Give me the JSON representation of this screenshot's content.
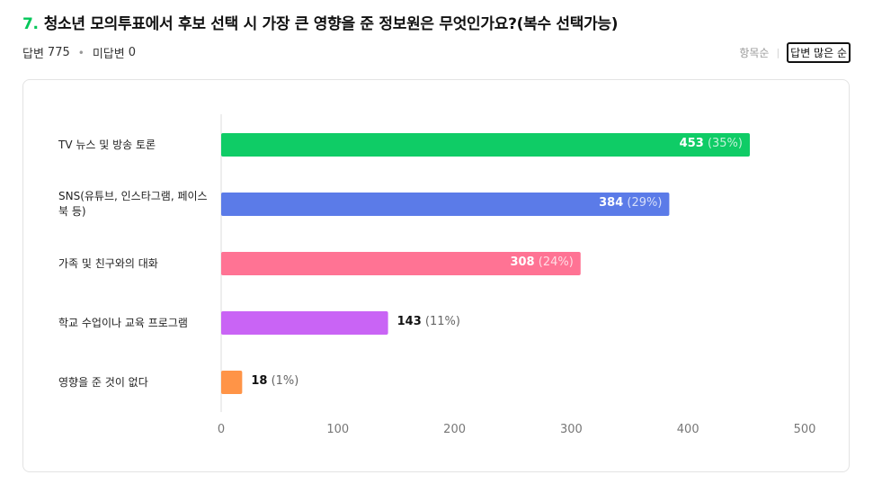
{
  "question": {
    "number": "7.",
    "title": "청소년 모의투표에서 후보 선택 시 가장 큰 영향을 준 정보원은 무엇인가요?(복수 선택가능)"
  },
  "stats": {
    "answered_label": "답변",
    "answered_count": "775",
    "unanswered_label": "미답변",
    "unanswered_count": "0"
  },
  "sort": {
    "by_item": "항목순",
    "by_answers": "답변 많은 순",
    "active": "by_answers"
  },
  "colors": {
    "accent": "#03c75a",
    "series": [
      "#0fcc66",
      "#5b7be8",
      "#ff7394",
      "#c964f5",
      "#ff9447"
    ]
  },
  "chart_data": {
    "type": "bar",
    "orientation": "horizontal",
    "categories": [
      "TV 뉴스 및 방송 토론",
      "SNS(유튜브, 인스타그램, 페이스북 등)",
      "가족 및 친구와의 대화",
      "학교 수업이나 교육 프로그램",
      "영향을 준 것이 없다"
    ],
    "values": [
      453,
      384,
      308,
      143,
      18
    ],
    "value_labels": [
      "453",
      "384",
      "308",
      "143",
      "18"
    ],
    "percent_labels": [
      "(35%)",
      "(29%)",
      "(24%)",
      "(11%)",
      "(1%)"
    ],
    "xlim": [
      0,
      500
    ],
    "xticks": [
      0,
      100,
      200,
      300,
      400,
      500
    ],
    "xtick_labels": [
      "0",
      "100",
      "200",
      "300",
      "400",
      "500"
    ],
    "title": "",
    "xlabel": "",
    "ylabel": "",
    "grid": false,
    "legend": "none"
  }
}
